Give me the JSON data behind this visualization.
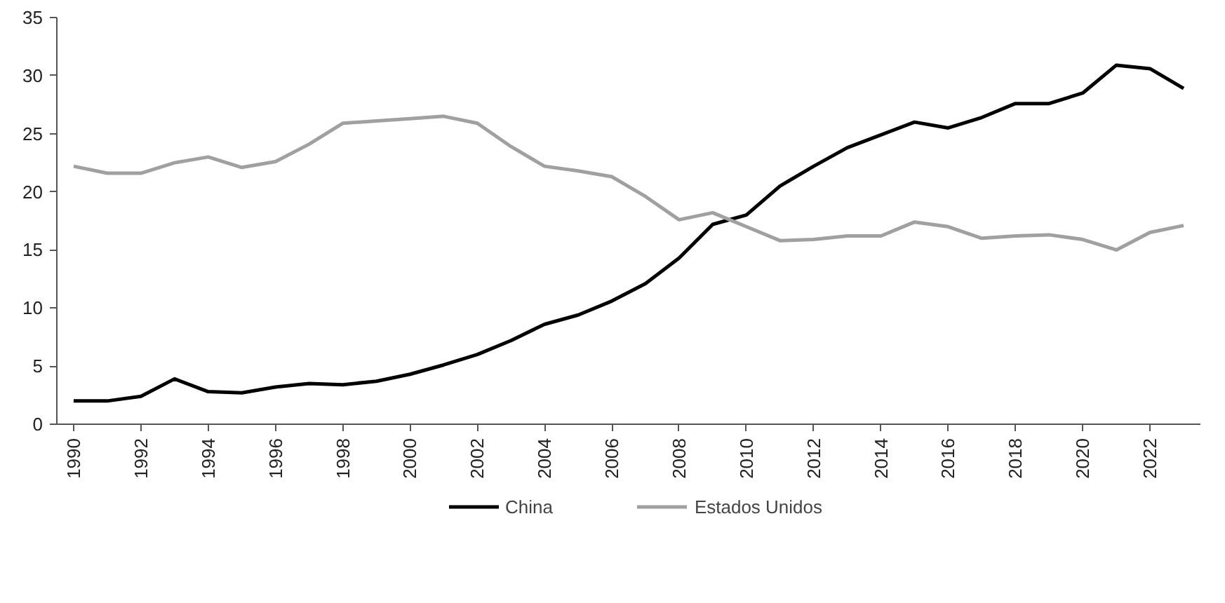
{
  "chart_data": {
    "type": "line",
    "categories": [
      "1990",
      null,
      "1992",
      null,
      "1994",
      null,
      "1996",
      null,
      "1998",
      null,
      "2000",
      null,
      "2002",
      null,
      "2004",
      null,
      "2006",
      null,
      "2008",
      null,
      "2010",
      null,
      "2012",
      null,
      "2014",
      null,
      "2016",
      null,
      "2018",
      null,
      "2020",
      null,
      "2022",
      null
    ],
    "series": [
      {
        "name": "China",
        "color": "#000000",
        "values": [
          2.0,
          2.0,
          2.4,
          3.9,
          2.8,
          2.7,
          3.2,
          3.5,
          3.4,
          3.7,
          4.3,
          5.1,
          6.0,
          7.2,
          8.6,
          9.4,
          10.6,
          12.1,
          14.3,
          17.2,
          18.0,
          20.5,
          22.2,
          23.8,
          24.9,
          26.0,
          25.5,
          26.4,
          27.6,
          27.6,
          28.5,
          30.9,
          30.6,
          28.9
        ]
      },
      {
        "name": "Estados Unidos",
        "color": "#a0a0a0",
        "values": [
          22.2,
          21.6,
          21.6,
          22.5,
          23.0,
          22.1,
          22.6,
          24.1,
          25.9,
          26.1,
          26.3,
          26.5,
          25.9,
          23.9,
          22.2,
          21.8,
          21.3,
          19.6,
          17.6,
          18.2,
          17.0,
          15.8,
          15.9,
          16.2,
          16.2,
          17.4,
          17.0,
          16.0,
          16.2,
          16.3,
          15.9,
          15.0,
          16.5,
          17.1
        ]
      }
    ],
    "ylim": [
      0,
      35
    ],
    "yticks": [
      0,
      5,
      10,
      15,
      20,
      25,
      30,
      35
    ],
    "grid": false,
    "legend": "bottom",
    "marker": "none",
    "line_style": "solid"
  }
}
